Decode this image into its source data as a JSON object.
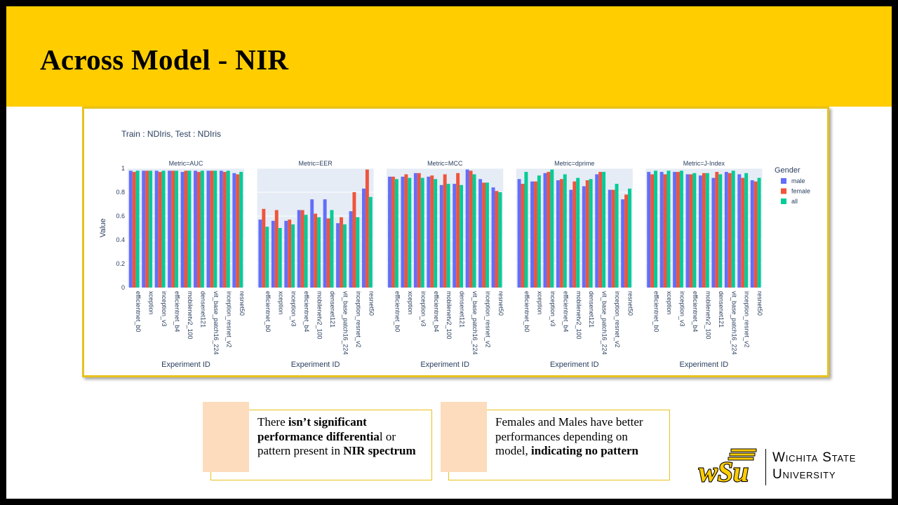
{
  "slide": {
    "title": "Across Model - NIR"
  },
  "chart_data": {
    "type": "bar",
    "title": "Train : NDIris, Test : NDIris",
    "ylabel": "Value",
    "xlabel": "Experiment ID",
    "ylim": [
      0,
      1
    ],
    "yticks": [
      0,
      0.2,
      0.4,
      0.6,
      0.8,
      1
    ],
    "ytick_labels": [
      "0",
      "0.2",
      "0.4",
      "0.6",
      "0.8",
      "1"
    ],
    "legend": {
      "title": "Gender",
      "position": "right"
    },
    "categories": [
      "efficientnet_b0",
      "xception",
      "inception_v3",
      "efficientnet_b4",
      "mobilenetv2_100",
      "densenet121",
      "vit_base_patch16_224",
      "inception_resnet_v2",
      "resnet50"
    ],
    "series_colors": {
      "male": "#636efa",
      "female": "#ef553b",
      "all": "#00cc96"
    },
    "facets": [
      {
        "title": "Metric=AUC",
        "series": [
          {
            "name": "male",
            "values": [
              0.98,
              0.98,
              0.98,
              0.98,
              0.97,
              0.98,
              0.98,
              0.98,
              0.96
            ]
          },
          {
            "name": "female",
            "values": [
              0.97,
              0.98,
              0.97,
              0.98,
              0.98,
              0.97,
              0.98,
              0.97,
              0.95
            ]
          },
          {
            "name": "all",
            "values": [
              0.98,
              0.98,
              0.98,
              0.98,
              0.98,
              0.98,
              0.98,
              0.98,
              0.97
            ]
          }
        ]
      },
      {
        "title": "Metric=EER",
        "series": [
          {
            "name": "male",
            "values": [
              0.57,
              0.56,
              0.56,
              0.65,
              0.74,
              0.74,
              0.54,
              0.64,
              0.83
            ]
          },
          {
            "name": "female",
            "values": [
              0.66,
              0.65,
              0.57,
              0.65,
              0.62,
              0.58,
              0.59,
              0.8,
              0.99
            ]
          },
          {
            "name": "all",
            "values": [
              0.51,
              0.5,
              0.53,
              0.61,
              0.59,
              0.65,
              0.53,
              0.59,
              0.76
            ]
          }
        ]
      },
      {
        "title": "Metric=MCC",
        "series": [
          {
            "name": "male",
            "values": [
              0.93,
              0.93,
              0.96,
              0.93,
              0.86,
              0.87,
              0.99,
              0.91,
              0.84
            ]
          },
          {
            "name": "female",
            "values": [
              0.93,
              0.95,
              0.96,
              0.94,
              0.95,
              0.96,
              0.98,
              0.88,
              0.81
            ]
          },
          {
            "name": "all",
            "values": [
              0.91,
              0.92,
              0.92,
              0.91,
              0.87,
              0.86,
              0.95,
              0.88,
              0.8
            ]
          }
        ]
      },
      {
        "title": "Metric=dprime",
        "series": [
          {
            "name": "male",
            "values": [
              0.91,
              0.89,
              0.96,
              0.9,
              0.82,
              0.85,
              0.95,
              0.82,
              0.74
            ]
          },
          {
            "name": "female",
            "values": [
              0.87,
              0.89,
              0.97,
              0.91,
              0.89,
              0.9,
              0.97,
              0.82,
              0.78
            ]
          },
          {
            "name": "all",
            "values": [
              0.97,
              0.94,
              0.99,
              0.95,
              0.92,
              0.91,
              0.97,
              0.87,
              0.83
            ]
          }
        ]
      },
      {
        "title": "Metric=J-Index",
        "series": [
          {
            "name": "male",
            "values": [
              0.97,
              0.97,
              0.97,
              0.95,
              0.94,
              0.92,
              0.97,
              0.95,
              0.9
            ]
          },
          {
            "name": "female",
            "values": [
              0.95,
              0.95,
              0.97,
              0.95,
              0.96,
              0.97,
              0.96,
              0.92,
              0.89
            ]
          },
          {
            "name": "all",
            "values": [
              0.98,
              0.98,
              0.98,
              0.96,
              0.96,
              0.95,
              0.98,
              0.96,
              0.92
            ]
          }
        ]
      }
    ]
  },
  "notes": [
    {
      "p1": "There ",
      "b1": "isn’t significant performance differentia",
      "p2": "l or pattern present in ",
      "b2": "NIR spectrum",
      "p3": ""
    },
    {
      "p1": "Females and Males have better performances depending on model, ",
      "b1": "indicating  no pattern",
      "p2": "",
      "b2": "",
      "p3": ""
    }
  ],
  "logo": {
    "mark": "wSu",
    "line1": "Wichita State",
    "line2": "University"
  }
}
